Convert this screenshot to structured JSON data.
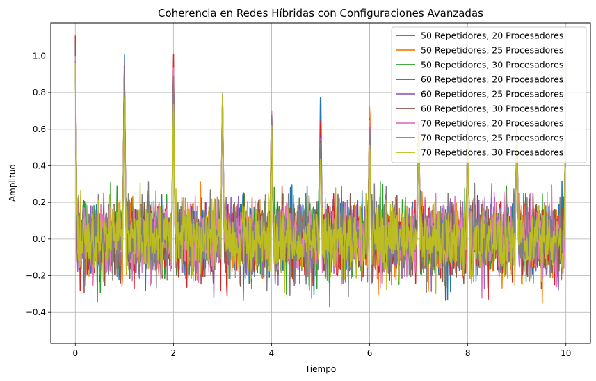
{
  "chart_data": {
    "type": "line",
    "title": "Coherencia en Redes Híbridas con Configuraciones Avanzadas",
    "xlabel": "Tiempo",
    "ylabel": "Amplitud",
    "xlim": [
      -0.5,
      10.5
    ],
    "ylim": [
      -0.57,
      1.18
    ],
    "xticks": [
      0,
      2,
      4,
      6,
      8,
      10
    ],
    "xtick_labels": [
      "0",
      "2",
      "4",
      "6",
      "8",
      "10"
    ],
    "yticks": [
      -0.4,
      -0.2,
      0.0,
      0.2,
      0.4,
      0.6,
      0.8,
      1.0
    ],
    "ytick_labels": [
      "−0.4",
      "−0.2",
      "0.0",
      "0.2",
      "0.4",
      "0.6",
      "0.8",
      "1.0"
    ],
    "grid": true,
    "legend_position": "top-right",
    "x": {
      "start": 0,
      "end": 10,
      "count": 1000
    },
    "noise_amplitude": 0.2,
    "peak_times": [
      0,
      1,
      2,
      3,
      4,
      5,
      6,
      7,
      8,
      9,
      10
    ],
    "series": [
      {
        "name": "50 Repetidores, 20 Procesadores",
        "color": "#1f77b4",
        "peaks": [
          1.07,
          1.04,
          0.95,
          0.82,
          0.74,
          0.9,
          0.72,
          0.63,
          0.68,
          0.62,
          0.95
        ]
      },
      {
        "name": "50 Repetidores, 25 Procesadores",
        "color": "#ff7f0e",
        "peaks": [
          1.02,
          0.98,
          0.93,
          0.8,
          0.76,
          0.69,
          0.82,
          0.68,
          0.66,
          0.64,
          0.93
        ]
      },
      {
        "name": "50 Repetidores, 30 Procesadores",
        "color": "#2ca02c",
        "peaks": [
          0.98,
          0.95,
          0.9,
          0.85,
          0.72,
          0.66,
          0.7,
          0.62,
          0.65,
          0.61,
          0.92
        ]
      },
      {
        "name": "60 Repetidores, 20 Procesadores",
        "color": "#d62728",
        "peaks": [
          1.11,
          0.99,
          1.07,
          0.83,
          0.73,
          0.75,
          0.74,
          0.7,
          0.67,
          0.66,
          0.94
        ]
      },
      {
        "name": "60 Repetidores, 25 Procesadores",
        "color": "#9467bd",
        "peaks": [
          1.05,
          1.0,
          0.97,
          0.86,
          0.78,
          0.64,
          0.68,
          0.66,
          0.63,
          0.63,
          0.96
        ]
      },
      {
        "name": "60 Repetidores, 30 Procesadores",
        "color": "#8c564b",
        "peaks": [
          1.09,
          0.97,
          0.96,
          0.81,
          0.75,
          0.62,
          0.71,
          0.64,
          0.62,
          0.6,
          0.94
        ]
      },
      {
        "name": "70 Repetidores, 20 Procesadores",
        "color": "#e377c2",
        "peaks": [
          1.0,
          0.94,
          0.99,
          0.84,
          0.79,
          0.6,
          0.73,
          0.67,
          0.64,
          0.65,
          0.95
        ]
      },
      {
        "name": "70 Repetidores, 25 Procesadores",
        "color": "#7f7f7f",
        "peaks": [
          0.97,
          0.96,
          0.94,
          0.87,
          0.76,
          0.61,
          0.69,
          0.61,
          0.66,
          0.62,
          0.93
        ]
      },
      {
        "name": "70 Repetidores, 30 Procesadores",
        "color": "#bcbd22",
        "peaks": [
          0.96,
          0.8,
          0.78,
          0.87,
          0.7,
          0.51,
          0.58,
          0.62,
          0.6,
          0.59,
          0.95
        ]
      }
    ]
  }
}
